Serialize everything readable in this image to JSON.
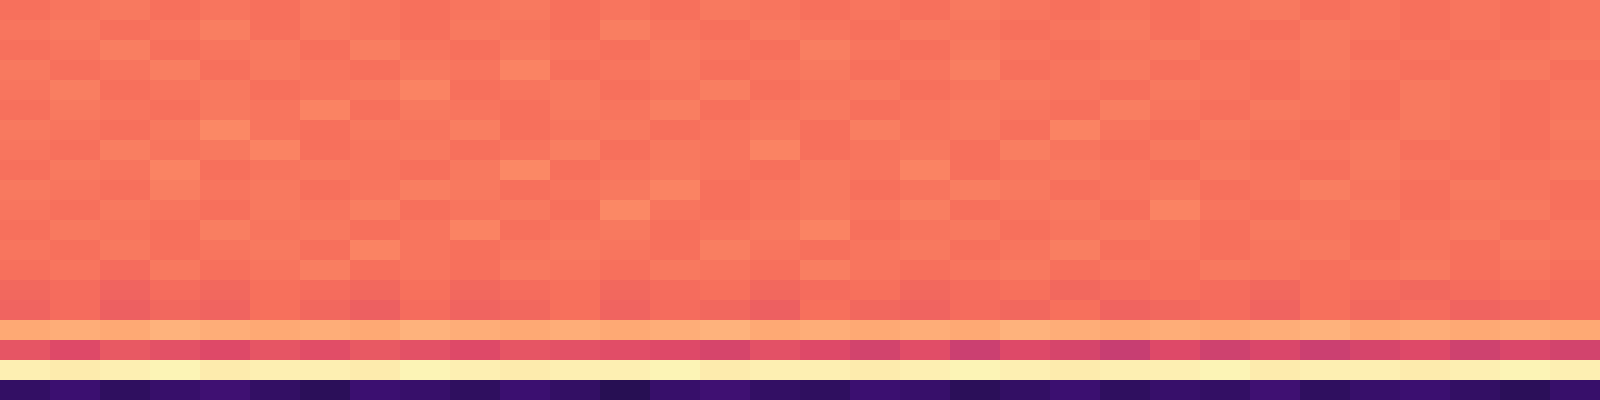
{
  "chart_data": {
    "type": "heatmap",
    "tick_labels": false,
    "zlim": [
      0,
      1
    ],
    "z": [
      [
        0.18,
        0.2,
        0.17,
        0.19,
        0.21,
        0.18,
        0.16,
        0.2,
        0.19,
        0.17,
        0.2,
        0.18,
        0.15,
        0.19,
        0.21,
        0.18,
        0.17,
        0.2,
        0.19,
        0.16,
        0.18,
        0.2,
        0.17,
        0.19,
        0.18,
        0.21,
        0.17,
        0.19,
        0.2,
        0.18,
        0.16,
        0.19
      ],
      [
        0.97,
        0.96,
        0.97,
        0.98,
        0.96,
        0.97,
        0.97,
        0.96,
        0.98,
        0.97,
        0.96,
        0.97,
        0.97,
        0.98,
        0.96,
        0.97,
        0.97,
        0.96,
        0.97,
        0.98,
        0.97,
        0.96,
        0.97,
        0.97,
        0.98,
        0.96,
        0.97,
        0.97,
        0.96,
        0.97,
        0.98,
        0.97
      ],
      [
        0.63,
        0.6,
        0.64,
        0.62,
        0.6,
        0.63,
        0.61,
        0.64,
        0.62,
        0.6,
        0.63,
        0.62,
        0.61,
        0.6,
        0.58,
        0.62,
        0.6,
        0.57,
        0.61,
        0.55,
        0.6,
        0.58,
        0.54,
        0.6,
        0.56,
        0.59,
        0.55,
        0.58,
        0.6,
        0.56,
        0.59,
        0.57
      ],
      [
        0.82,
        0.83,
        0.82,
        0.84,
        0.83,
        0.82,
        0.83,
        0.82,
        0.84,
        0.83,
        0.82,
        0.83,
        0.82,
        0.83,
        0.84,
        0.82,
        0.83,
        0.82,
        0.83,
        0.82,
        0.84,
        0.83,
        0.82,
        0.83,
        0.82,
        0.83,
        0.84,
        0.82,
        0.83,
        0.82,
        0.83,
        0.82
      ],
      [
        0.67,
        0.69,
        0.66,
        0.68,
        0.67,
        0.7,
        0.68,
        0.66,
        0.69,
        0.67,
        0.68,
        0.7,
        0.67,
        0.69,
        0.68,
        0.66,
        0.7,
        0.68,
        0.67,
        0.69,
        0.68,
        0.7,
        0.67,
        0.68,
        0.69,
        0.67,
        0.7,
        0.68,
        0.69,
        0.67,
        0.68,
        0.69
      ],
      [
        0.68,
        0.69,
        0.67,
        0.69,
        0.68,
        0.7,
        0.69,
        0.68,
        0.7,
        0.68,
        0.69,
        0.7,
        0.68,
        0.69,
        0.7,
        0.68,
        0.69,
        0.7,
        0.68,
        0.69,
        0.7,
        0.68,
        0.69,
        0.7,
        0.69,
        0.68,
        0.7,
        0.69,
        0.68,
        0.69,
        0.7,
        0.69
      ],
      [
        0.7,
        0.71,
        0.69,
        0.72,
        0.7,
        0.71,
        0.73,
        0.7,
        0.71,
        0.7,
        0.72,
        0.71,
        0.7,
        0.72,
        0.71,
        0.7,
        0.73,
        0.71,
        0.7,
        0.71,
        0.72,
        0.7,
        0.71,
        0.7,
        0.72,
        0.71,
        0.7,
        0.71,
        0.72,
        0.7,
        0.71,
        0.7
      ],
      [
        0.71,
        0.7,
        0.72,
        0.7,
        0.71,
        0.72,
        0.7,
        0.74,
        0.71,
        0.7,
        0.71,
        0.72,
        0.71,
        0.7,
        0.73,
        0.71,
        0.7,
        0.71,
        0.72,
        0.7,
        0.71,
        0.73,
        0.7,
        0.71,
        0.7,
        0.71,
        0.72,
        0.7,
        0.71,
        0.7,
        0.72,
        0.71
      ],
      [
        0.7,
        0.72,
        0.71,
        0.7,
        0.73,
        0.71,
        0.72,
        0.7,
        0.71,
        0.74,
        0.7,
        0.71,
        0.72,
        0.7,
        0.71,
        0.72,
        0.74,
        0.7,
        0.71,
        0.72,
        0.7,
        0.71,
        0.72,
        0.71,
        0.7,
        0.72,
        0.71,
        0.7,
        0.71,
        0.72,
        0.7,
        0.71
      ],
      [
        0.71,
        0.7,
        0.72,
        0.71,
        0.7,
        0.72,
        0.71,
        0.73,
        0.7,
        0.71,
        0.72,
        0.7,
        0.75,
        0.71,
        0.7,
        0.71,
        0.72,
        0.71,
        0.73,
        0.7,
        0.71,
        0.72,
        0.7,
        0.74,
        0.71,
        0.7,
        0.71,
        0.72,
        0.7,
        0.71,
        0.72,
        0.7
      ],
      [
        0.72,
        0.71,
        0.7,
        0.73,
        0.71,
        0.72,
        0.7,
        0.71,
        0.73,
        0.72,
        0.7,
        0.71,
        0.72,
        0.74,
        0.7,
        0.71,
        0.72,
        0.7,
        0.71,
        0.73,
        0.72,
        0.7,
        0.71,
        0.72,
        0.7,
        0.71,
        0.73,
        0.71,
        0.7,
        0.72,
        0.71,
        0.7
      ],
      [
        0.7,
        0.72,
        0.71,
        0.74,
        0.7,
        0.71,
        0.72,
        0.71,
        0.7,
        0.72,
        0.75,
        0.7,
        0.71,
        0.72,
        0.71,
        0.7,
        0.72,
        0.71,
        0.74,
        0.7,
        0.71,
        0.72,
        0.71,
        0.7,
        0.72,
        0.71,
        0.7,
        0.72,
        0.71,
        0.7,
        0.71,
        0.72
      ],
      [
        0.71,
        0.7,
        0.73,
        0.71,
        0.72,
        0.74,
        0.7,
        0.71,
        0.72,
        0.7,
        0.71,
        0.73,
        0.7,
        0.72,
        0.71,
        0.74,
        0.7,
        0.71,
        0.72,
        0.7,
        0.73,
        0.71,
        0.7,
        0.72,
        0.71,
        0.7,
        0.71,
        0.72,
        0.7,
        0.71,
        0.7,
        0.71
      ],
      [
        0.72,
        0.71,
        0.7,
        0.72,
        0.75,
        0.71,
        0.7,
        0.72,
        0.71,
        0.73,
        0.7,
        0.71,
        0.72,
        0.7,
        0.71,
        0.72,
        0.7,
        0.73,
        0.71,
        0.72,
        0.7,
        0.74,
        0.71,
        0.7,
        0.72,
        0.71,
        0.7,
        0.71,
        0.72,
        0.71,
        0.7,
        0.72
      ],
      [
        0.7,
        0.72,
        0.71,
        0.7,
        0.72,
        0.71,
        0.74,
        0.7,
        0.72,
        0.71,
        0.7,
        0.72,
        0.71,
        0.73,
        0.7,
        0.71,
        0.72,
        0.7,
        0.71,
        0.72,
        0.71,
        0.7,
        0.73,
        0.71,
        0.7,
        0.72,
        0.71,
        0.7,
        0.72,
        0.71,
        0.7,
        0.71
      ],
      [
        0.71,
        0.73,
        0.7,
        0.71,
        0.72,
        0.7,
        0.71,
        0.72,
        0.74,
        0.7,
        0.71,
        0.72,
        0.7,
        0.71,
        0.73,
        0.7,
        0.71,
        0.72,
        0.7,
        0.71,
        0.72,
        0.71,
        0.7,
        0.72,
        0.71,
        0.7,
        0.71,
        0.7,
        0.72,
        0.71,
        0.7,
        0.71
      ],
      [
        0.72,
        0.7,
        0.71,
        0.73,
        0.7,
        0.72,
        0.71,
        0.7,
        0.72,
        0.71,
        0.74,
        0.7,
        0.71,
        0.72,
        0.7,
        0.71,
        0.72,
        0.7,
        0.71,
        0.73,
        0.7,
        0.71,
        0.72,
        0.7,
        0.71,
        0.7,
        0.72,
        0.71,
        0.7,
        0.71,
        0.72,
        0.7
      ],
      [
        0.7,
        0.71,
        0.73,
        0.7,
        0.71,
        0.72,
        0.7,
        0.73,
        0.71,
        0.7,
        0.72,
        0.71,
        0.7,
        0.72,
        0.71,
        0.7,
        0.73,
        0.71,
        0.7,
        0.72,
        0.71,
        0.7,
        0.71,
        0.72,
        0.7,
        0.71,
        0.72,
        0.7,
        0.71,
        0.7,
        0.71,
        0.72
      ],
      [
        0.71,
        0.72,
        0.7,
        0.71,
        0.73,
        0.7,
        0.72,
        0.71,
        0.7,
        0.72,
        0.71,
        0.7,
        0.73,
        0.71,
        0.7,
        0.72,
        0.71,
        0.7,
        0.72,
        0.71,
        0.7,
        0.71,
        0.72,
        0.7,
        0.71,
        0.7,
        0.72,
        0.71,
        0.7,
        0.71,
        0.7,
        0.71
      ],
      [
        0.7,
        0.71,
        0.72,
        0.7,
        0.71,
        0.7,
        0.72,
        0.71,
        0.7,
        0.71,
        0.72,
        0.7,
        0.71,
        0.7,
        0.72,
        0.71,
        0.7,
        0.71,
        0.7,
        0.72,
        0.71,
        0.7,
        0.71,
        0.7,
        0.71,
        0.72,
        0.7,
        0.71,
        0.7,
        0.71,
        0.7,
        0.71
      ]
    ]
  }
}
